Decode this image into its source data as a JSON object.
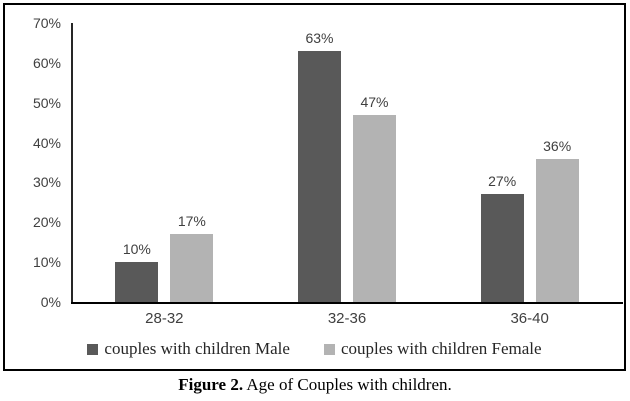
{
  "figure": {
    "caption": {
      "prefix": "Figure 2.",
      "text": " Age of Couples with children."
    }
  },
  "chart_data": {
    "type": "bar",
    "title": "",
    "xlabel": "",
    "ylabel": "",
    "categories": [
      "28-32",
      "32-36",
      "36-40"
    ],
    "series": [
      {
        "name": "couples with children Male",
        "color": "#595959",
        "values": [
          10,
          63,
          27
        ]
      },
      {
        "name": "couples with children Female",
        "color": "#b3b3b3",
        "values": [
          17,
          47,
          36
        ]
      }
    ],
    "data_labels": [
      [
        "10%",
        "63%",
        "27%"
      ],
      [
        "17%",
        "47%",
        "36%"
      ]
    ],
    "ylim": [
      0,
      70
    ],
    "ytick_labels": [
      "0%",
      "10%",
      "20%",
      "30%",
      "40%",
      "50%",
      "60%",
      "70%"
    ],
    "grid": false,
    "legend_position": "bottom"
  }
}
